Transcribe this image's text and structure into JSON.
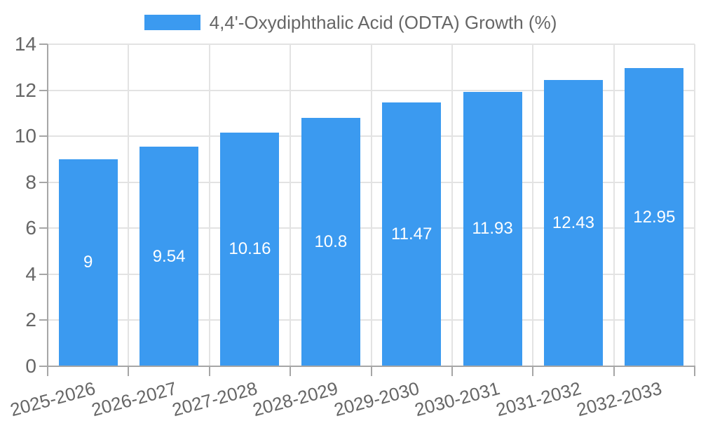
{
  "chart_data": {
    "type": "bar",
    "title": "4,4'-Oxydiphthalic Acid (ODTA) Growth (%)",
    "legend": {
      "position": "top-center",
      "entries": [
        {
          "label": "4,4'-Oxydiphthalic Acid (ODTA) Growth (%)",
          "color": "#3B9AF0"
        }
      ]
    },
    "categories": [
      "2025-2026",
      "2026-2027",
      "2027-2028",
      "2028-2029",
      "2029-2030",
      "2030-2031",
      "2031-2032",
      "2032-2033"
    ],
    "series": [
      {
        "name": "4,4'-Oxydiphthalic Acid (ODTA) Growth (%)",
        "values": [
          9,
          9.54,
          10.16,
          10.8,
          11.47,
          11.93,
          12.43,
          12.95
        ],
        "value_labels": [
          "9",
          "9.54",
          "10.16",
          "10.8",
          "11.47",
          "11.93",
          "12.43",
          "12.95"
        ]
      }
    ],
    "xlabel": "",
    "ylabel": "",
    "ylim": [
      0,
      14
    ],
    "y_ticks": [
      0,
      2,
      4,
      6,
      8,
      10,
      12,
      14
    ],
    "grid": true,
    "x_tick_rotation_deg": -15,
    "bar_label_position": "center-inside",
    "colors": {
      "bar": "#3B9AF0",
      "bar_label_text": "#FFFFFF",
      "tick_text": "#666666",
      "legend_text": "#666666",
      "gridline": "#E3E3E3",
      "axis_line": "#A6A6A6",
      "background": "#FFFFFF"
    }
  }
}
